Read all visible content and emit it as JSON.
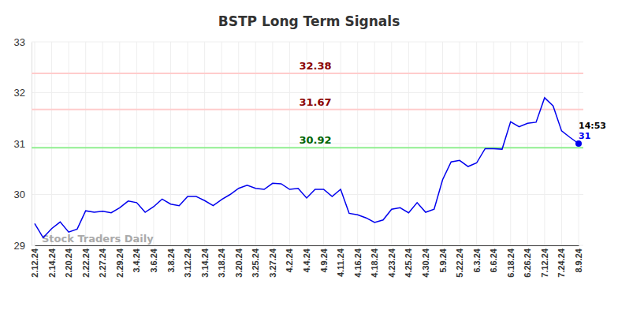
{
  "chart_data": {
    "type": "line",
    "title": "BSTP Long Term Signals",
    "categories": [
      "2.12.24",
      null,
      "2.14.24",
      null,
      "2.20.24",
      null,
      "2.22.24",
      null,
      "2.27.24",
      null,
      "2.29.24",
      null,
      "3.4.24",
      null,
      "3.6.24",
      null,
      "3.8.24",
      null,
      "3.12.24",
      null,
      "3.14.24",
      null,
      "3.18.24",
      null,
      "3.20.24",
      null,
      "3.25.24",
      null,
      "3.27.24",
      null,
      "4.2.24",
      null,
      "4.4.24",
      null,
      "4.9.24",
      null,
      "4.11.24",
      null,
      "4.16.24",
      null,
      "4.18.24",
      null,
      "4.23.24",
      null,
      "4.25.24",
      null,
      "4.30.24",
      null,
      "5.9.24",
      null,
      "5.22.24",
      null,
      "6.3.24",
      null,
      "6.6.24",
      null,
      "6.18.24",
      null,
      "6.26.24",
      null,
      "7.12.24",
      null,
      "7.24.24",
      null,
      "8.9.24"
    ],
    "values": [
      29.43,
      29.15,
      29.33,
      29.46,
      29.26,
      29.32,
      29.68,
      29.65,
      29.67,
      29.64,
      29.74,
      29.87,
      29.84,
      29.65,
      29.76,
      29.91,
      29.81,
      29.78,
      29.96,
      29.96,
      29.88,
      29.78,
      29.9,
      30.0,
      30.12,
      30.18,
      30.12,
      30.1,
      30.22,
      30.21,
      30.1,
      30.12,
      29.93,
      30.1,
      30.1,
      29.96,
      30.1,
      29.63,
      29.6,
      29.54,
      29.45,
      29.5,
      29.71,
      29.74,
      29.64,
      29.84,
      29.65,
      29.71,
      30.29,
      30.64,
      30.67,
      30.55,
      30.62,
      30.9,
      30.9,
      30.89,
      31.43,
      31.33,
      31.4,
      31.42,
      31.9,
      31.74,
      31.25,
      31.12,
      31.0
    ],
    "color": "#0000ee",
    "ylim": [
      29,
      33
    ],
    "yticks": [
      29,
      30,
      31,
      32,
      33
    ],
    "grid": true,
    "reference_lines": [
      {
        "value": 32.38,
        "color": "#ffcccc",
        "label_color": "#8b0000"
      },
      {
        "value": 31.67,
        "color": "#ffcccc",
        "label_color": "#8b0000"
      },
      {
        "value": 30.92,
        "color": "#90ee90",
        "label_color": "#006400"
      }
    ],
    "annotations": [
      {
        "text": "14:53"
      }
    ],
    "watermark": "Stock Traders Daily"
  }
}
